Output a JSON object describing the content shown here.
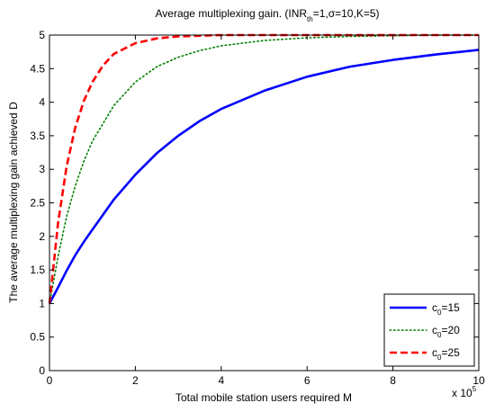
{
  "chart_data": {
    "type": "line",
    "title": {
      "text": "Average multiplexing gain. (INR",
      "subscript": "th",
      "rest": "=1,σ=10,K=5)"
    },
    "xlabel": "Total mobile station users required M",
    "ylabel": "The average multiplexing gain achieved D",
    "x_multiplier_label": {
      "base": "x 10",
      "exponent": "5"
    },
    "xlim": [
      0,
      10
    ],
    "ylim": [
      0,
      5
    ],
    "x_ticks": [
      0,
      2,
      4,
      6,
      8,
      10
    ],
    "x_tick_labels": [
      "0",
      "2",
      "4",
      "6",
      "8",
      "10"
    ],
    "y_ticks": [
      0,
      0.5,
      1,
      1.5,
      2,
      2.5,
      3,
      3.5,
      4,
      4.5,
      5
    ],
    "y_tick_labels": [
      "0",
      "0.5",
      "1",
      "1.5",
      "2",
      "2.5",
      "3",
      "3.5",
      "4",
      "4.5",
      "5"
    ],
    "grid": false,
    "legend_position": "bottom-right",
    "series": [
      {
        "legend_base": "c",
        "legend_sub": "0",
        "legend_rest": "=15",
        "color": "#0000ff",
        "style": "solid",
        "x": [
          0,
          0.1,
          0.2,
          0.4,
          0.6,
          0.8,
          1,
          1.5,
          2,
          2.5,
          3,
          3.5,
          4,
          5,
          6,
          7,
          8,
          9,
          10
        ],
        "y": [
          1.0,
          1.12,
          1.24,
          1.49,
          1.72,
          1.92,
          2.1,
          2.55,
          2.92,
          3.24,
          3.5,
          3.72,
          3.9,
          4.17,
          4.38,
          4.53,
          4.63,
          4.71,
          4.78
        ]
      },
      {
        "legend_base": "c",
        "legend_sub": "0",
        "legend_rest": "=20",
        "color": "#008000",
        "style": "dotted",
        "x": [
          0,
          0.1,
          0.2,
          0.4,
          0.6,
          0.8,
          1,
          1.5,
          2,
          2.5,
          3,
          3.5,
          4,
          5,
          6,
          7,
          8,
          9,
          10
        ],
        "y": [
          1.0,
          1.35,
          1.7,
          2.3,
          2.75,
          3.12,
          3.42,
          3.95,
          4.3,
          4.53,
          4.67,
          4.77,
          4.84,
          4.92,
          4.96,
          4.98,
          4.99,
          5.0,
          5.0
        ]
      },
      {
        "legend_base": "c",
        "legend_sub": "0",
        "legend_rest": "=25",
        "color": "#ff0000",
        "style": "dashed",
        "x": [
          0,
          0.1,
          0.2,
          0.4,
          0.6,
          0.8,
          1,
          1.25,
          1.5,
          2,
          2.5,
          3,
          4,
          5,
          6,
          7,
          8,
          9,
          10
        ],
        "y": [
          1.0,
          1.6,
          2.2,
          3.05,
          3.62,
          4.02,
          4.3,
          4.55,
          4.72,
          4.88,
          4.95,
          4.98,
          5.0,
          5.0,
          5.0,
          5.0,
          5.0,
          5.0,
          5.0
        ]
      }
    ]
  }
}
